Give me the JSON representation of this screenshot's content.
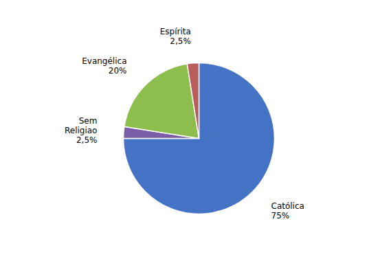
{
  "chart_data": {
    "type": "pie",
    "categories": [
      "Católica",
      "Sem\nReligiao",
      "Evangélica",
      "Espírita"
    ],
    "values": [
      75,
      2.5,
      20,
      2.5
    ],
    "value_labels": [
      "75%",
      "2,5%",
      "20%",
      "2,5%"
    ],
    "colors": [
      "#4472C4",
      "#7B5EA7",
      "#8DBD4D",
      "#B85C5C"
    ],
    "data_labels": true
  }
}
